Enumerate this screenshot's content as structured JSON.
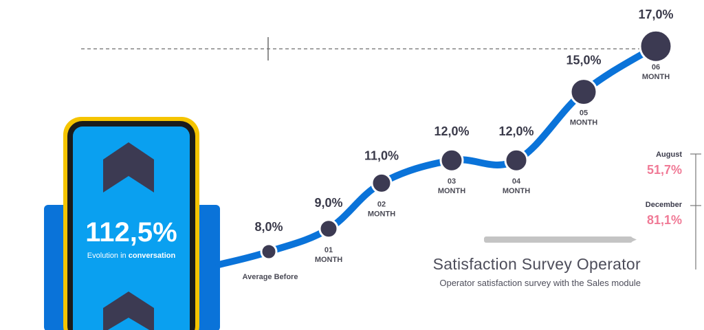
{
  "chart_data": {
    "type": "line",
    "title": "Satisfaction Survey Operator",
    "subtitle": "Operator satisfaction survey with the Sales module",
    "categories": [
      [
        "Average Before"
      ],
      [
        "01",
        "MONTH"
      ],
      [
        "02",
        "MONTH"
      ],
      [
        "03",
        "MONTH"
      ],
      [
        "04",
        "MONTH"
      ],
      [
        "05",
        "MONTH"
      ],
      [
        "06",
        "MONTH"
      ]
    ],
    "values": [
      8.0,
      9.0,
      11.0,
      12.0,
      12.0,
      15.0,
      17.0
    ],
    "value_labels": [
      "8,0%",
      "9,0%",
      "11,0%",
      "12,0%",
      "12,0%",
      "15,0%",
      "17,0%"
    ],
    "unit": "%",
    "grid": false,
    "colors": {
      "line": "#0a73d9",
      "marker": "#3c3a52",
      "accent": "#f07a96",
      "phone": "#0aa0f0",
      "phone_frame": "#f5c400"
    }
  },
  "highlight": {
    "value": "112,5%",
    "caption_prefix": "Evolution in ",
    "caption_bold": "conversation"
  },
  "side_stats": [
    {
      "label": "August",
      "value": "51,7%"
    },
    {
      "label": "December",
      "value": "81,1%"
    }
  ],
  "icons": [
    "chevron-up-icon",
    "chevron-up-icon"
  ]
}
